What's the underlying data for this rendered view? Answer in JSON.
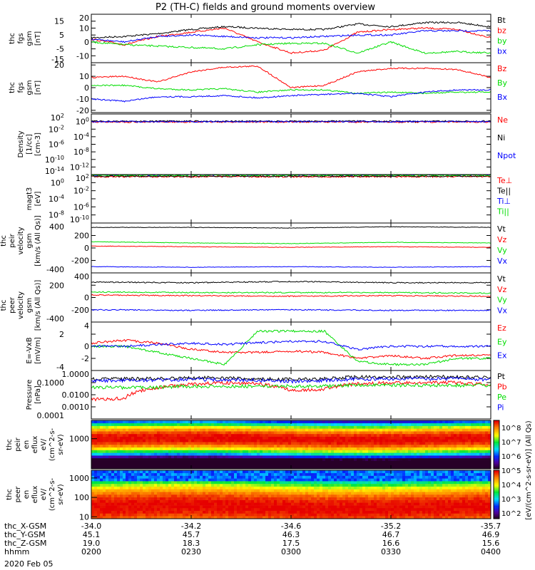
{
  "title": "P2 (TH-C) fields and ground moments overview",
  "chart_data": [
    {
      "type": "line",
      "ylabel": [
        "thc",
        "fgs",
        "gsm",
        "[nT]"
      ],
      "ylim": [
        -15,
        20
      ],
      "yticks": [
        20,
        15,
        10,
        5,
        0,
        -5,
        -10,
        -15
      ],
      "scale": "linear",
      "x_minutes": [
        0,
        10,
        20,
        30,
        40,
        50,
        60,
        70,
        80,
        90,
        100,
        110,
        120
      ],
      "series": [
        {
          "name": "Bt",
          "color": "#000000",
          "values": [
            3,
            4,
            6,
            9,
            11,
            10,
            9,
            9,
            13,
            11,
            14,
            14,
            11
          ]
        },
        {
          "name": "bz",
          "color": "#ff0000",
          "values": [
            2,
            -2,
            4,
            7,
            10,
            0,
            -8,
            -6,
            7,
            9,
            10,
            9,
            3
          ]
        },
        {
          "name": "by",
          "color": "#00dd00",
          "values": [
            0,
            -2,
            -3,
            -4,
            -5,
            -2,
            -1,
            -1,
            -8,
            0,
            -8,
            -7,
            -8
          ]
        },
        {
          "name": "bx",
          "color": "#0000ff",
          "values": [
            2,
            0,
            4,
            5,
            4,
            3,
            3,
            4,
            5,
            5,
            8,
            8,
            8
          ]
        }
      ]
    },
    {
      "type": "line",
      "ylabel": [
        "thc",
        "fgs",
        "gsm",
        "[nT]"
      ],
      "ylim": [
        -22,
        22
      ],
      "yticks": [
        20,
        10,
        0,
        -10,
        -20
      ],
      "scale": "linear",
      "x_minutes": [
        0,
        10,
        20,
        30,
        40,
        50,
        60,
        70,
        80,
        90,
        100,
        110,
        120
      ],
      "series": [
        {
          "name": "Bz",
          "color": "#ff0000",
          "values": [
            9,
            10,
            5,
            14,
            18,
            19,
            0,
            2,
            14,
            17,
            17,
            16,
            9
          ]
        },
        {
          "name": "By",
          "color": "#00dd00",
          "values": [
            2,
            2,
            -1,
            -2,
            -1,
            -4,
            -2,
            -2,
            -5,
            -4,
            -5,
            -4,
            -4
          ]
        },
        {
          "name": "Bx",
          "color": "#0000ff",
          "values": [
            -10,
            -12,
            -8,
            -8,
            -7,
            -9,
            -7,
            -6,
            -5,
            -8,
            -4,
            -2,
            -2
          ]
        }
      ]
    },
    {
      "type": "line",
      "ylabel": [
        "Density",
        "[1/cc]",
        "[cm-3]"
      ],
      "ylim": [
        -14,
        2
      ],
      "yticks": [
        2,
        0,
        -2,
        -4,
        -6,
        -8,
        -10,
        -12,
        -14
      ],
      "scale": "log",
      "x_minutes": [
        0,
        60,
        120
      ],
      "series": [
        {
          "name": "Ne",
          "color": "#ff0000",
          "values": [
            0.8,
            0.8,
            0.8
          ]
        },
        {
          "name": "Ni",
          "color": "#000000",
          "values": [
            1.2,
            1.2,
            1.2
          ]
        },
        {
          "name": "Npot",
          "color": "#0000ff",
          "values": [
            1.0,
            1.0,
            1.0
          ]
        }
      ]
    },
    {
      "type": "line",
      "ylabel": [
        "magt3",
        "[eV]"
      ],
      "ylim": [
        -10,
        2
      ],
      "yticks": [
        2,
        0,
        -2,
        -4,
        -6,
        -8,
        -10
      ],
      "scale": "log",
      "x_minutes": [
        0,
        60,
        120
      ],
      "series": [
        {
          "name": "Te⊥",
          "color": "#ff0000",
          "values": [
            30,
            30,
            30
          ]
        },
        {
          "name": "Te||",
          "color": "#000000",
          "values": [
            40,
            40,
            40
          ]
        },
        {
          "name": "Ti⊥",
          "color": "#0000ff",
          "values": [
            90,
            90,
            90
          ]
        },
        {
          "name": "Ti||",
          "color": "#00dd00",
          "values": [
            70,
            70,
            70
          ]
        }
      ]
    },
    {
      "type": "line",
      "ylabel": [
        "thc",
        "peir",
        "velocity",
        "gsm",
        "[km/s (All Qs)]"
      ],
      "ylim": [
        -400,
        400
      ],
      "yticks": [
        400,
        200,
        0,
        -200,
        -400
      ],
      "scale": "linear",
      "x_minutes": [
        0,
        30,
        60,
        90,
        120
      ],
      "series": [
        {
          "name": "Vt",
          "color": "#000000",
          "values": [
            330,
            330,
            320,
            340,
            330
          ]
        },
        {
          "name": "Vz",
          "color": "#ff0000",
          "values": [
            30,
            20,
            10,
            20,
            10
          ]
        },
        {
          "name": "Vy",
          "color": "#00dd00",
          "values": [
            100,
            80,
            70,
            90,
            80
          ]
        },
        {
          "name": "Vx",
          "color": "#0000ff",
          "values": [
            -300,
            -310,
            -300,
            -310,
            -300
          ]
        }
      ]
    },
    {
      "type": "line",
      "ylabel": [
        "thc",
        "peer",
        "velocity",
        "gsm",
        "[km/s (All Qs)]"
      ],
      "ylim": [
        -400,
        400
      ],
      "yticks": [
        400,
        200,
        0,
        -200,
        -400
      ],
      "scale": "linear",
      "x_minutes": [
        0,
        30,
        60,
        90,
        120
      ],
      "series": [
        {
          "name": "Vt",
          "color": "#000000",
          "values": [
            250,
            240,
            260,
            240,
            240
          ]
        },
        {
          "name": "Vz",
          "color": "#ff0000",
          "values": [
            40,
            30,
            20,
            30,
            20
          ]
        },
        {
          "name": "Vy",
          "color": "#00dd00",
          "values": [
            90,
            80,
            80,
            80,
            70
          ]
        },
        {
          "name": "Vx",
          "color": "#0000ff",
          "values": [
            -200,
            -210,
            -200,
            -210,
            -210
          ]
        }
      ]
    },
    {
      "type": "line",
      "ylabel": [
        "E=-VxB",
        "[mV/m]"
      ],
      "ylim": [
        -4,
        4
      ],
      "yticks": [
        4,
        2,
        0,
        -2,
        -4
      ],
      "scale": "linear",
      "x_minutes": [
        0,
        10,
        20,
        30,
        40,
        50,
        60,
        70,
        80,
        90,
        100,
        110,
        120
      ],
      "series": [
        {
          "name": "Ez",
          "color": "#ff0000",
          "values": [
            0.5,
            1,
            0.5,
            -0.5,
            -1,
            -1,
            -0.8,
            -1,
            -2,
            -1.5,
            -2,
            -1.5,
            -1.5
          ]
        },
        {
          "name": "Ey",
          "color": "#00dd00",
          "values": [
            0,
            0,
            -1,
            -2,
            -3,
            2.5,
            2.5,
            2.5,
            -2.5,
            -3,
            -3,
            -2,
            -2
          ]
        },
        {
          "name": "Ex",
          "color": "#0000ff",
          "values": [
            0,
            0,
            0.3,
            0.5,
            0.3,
            0.6,
            0.8,
            0.8,
            -0.5,
            0,
            0,
            0,
            0
          ]
        }
      ]
    },
    {
      "type": "line",
      "ylabel": [
        "Pressure",
        "[nPa]"
      ],
      "ylim": [
        -4,
        0
      ],
      "yticklabels": [
        "1.0000",
        "0.1000",
        "0.0100",
        "0.0010",
        "0.0001"
      ],
      "scale": "log",
      "x_minutes": [
        0,
        10,
        20,
        30,
        40,
        50,
        60,
        70,
        80,
        90,
        100,
        110,
        120
      ],
      "series": [
        {
          "name": "Pt",
          "color": "#000000",
          "values": [
            0.2,
            0.2,
            0.22,
            0.24,
            0.25,
            0.2,
            0.18,
            0.2,
            0.3,
            0.28,
            0.3,
            0.3,
            0.25
          ]
        },
        {
          "name": "Pb",
          "color": "#ff0000",
          "values": [
            0.004,
            0.005,
            0.04,
            0.07,
            0.1,
            0.08,
            0.02,
            0.03,
            0.08,
            0.09,
            0.1,
            0.1,
            0.06
          ]
        },
        {
          "name": "Pe",
          "color": "#00dd00",
          "values": [
            0.04,
            0.04,
            0.04,
            0.05,
            0.05,
            0.05,
            0.05,
            0.05,
            0.06,
            0.06,
            0.06,
            0.06,
            0.06
          ]
        },
        {
          "name": "Pi",
          "color": "#0000ff",
          "values": [
            0.15,
            0.15,
            0.16,
            0.18,
            0.18,
            0.15,
            0.13,
            0.15,
            0.2,
            0.2,
            0.2,
            0.22,
            0.18
          ]
        }
      ]
    },
    {
      "type": "heatmap",
      "ylabel": [
        "thc",
        "peir",
        "en",
        "eflux",
        "eV/",
        "(cm^2-s-",
        "sr-eV)"
      ],
      "ylim_log": [
        0.7,
        4.4
      ],
      "yticks": [
        "1000"
      ],
      "ytick_values": [
        3
      ],
      "peak_log_energy": 3.0,
      "width_decades": 0.9,
      "zlim_log": [
        2,
        8
      ]
    },
    {
      "type": "heatmap",
      "ylabel": [
        "thc",
        "peer",
        "en",
        "eflux",
        "eV/",
        "(cm^2-s-",
        "sr-eV)"
      ],
      "ylim_log": [
        0.9,
        3.4
      ],
      "yticks": [
        "1000",
        "100",
        "10"
      ],
      "ytick_values": [
        3,
        2,
        1
      ],
      "peak_log_energy": 1.5,
      "width_decades": 1.1,
      "zlim_log": [
        2,
        8
      ]
    }
  ],
  "colorbar": {
    "label": "[eV/(cm^2-s-sr-eV)] (All Qs)",
    "ticks": [
      "10^8",
      "10^7",
      "10^6",
      "10^5",
      "10^4",
      "10^3",
      "10^2"
    ]
  },
  "xaxis": {
    "rows": [
      {
        "label": "thc_X-GSM",
        "values": [
          "-34.0",
          "-34.2",
          "-34.6",
          "-35.2",
          "-35.7"
        ]
      },
      {
        "label": "thc_Y-GSM",
        "values": [
          "45.1",
          "45.7",
          "46.3",
          "46.7",
          "46.9"
        ]
      },
      {
        "label": "thc_Z-GSM",
        "values": [
          "19.0",
          "18.3",
          "17.5",
          "16.6",
          "15.6"
        ]
      },
      {
        "label": "hhmm",
        "values": [
          "0200",
          "0230",
          "0300",
          "0330",
          "0400"
        ]
      }
    ],
    "date": "2020 Feb 05"
  }
}
